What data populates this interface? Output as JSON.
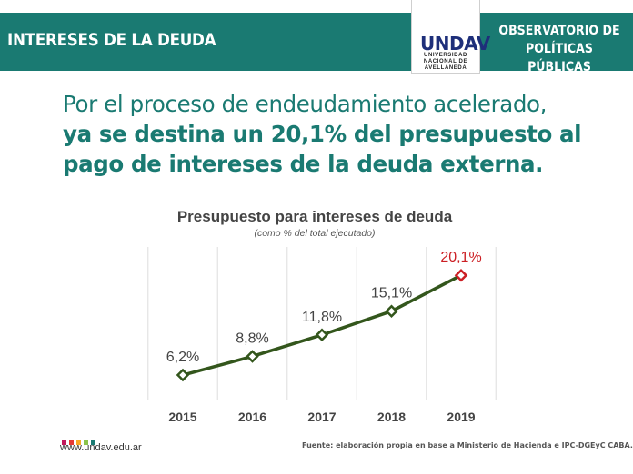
{
  "header": {
    "title": "INTERESES DE LA DEUDA",
    "logo": {
      "mark": "UNDAV",
      "lines": [
        "UNIVERSIDAD",
        "NACIONAL DE",
        "AVELLANEDA"
      ]
    },
    "observatorio_line1": "OBSERVATORIO DE",
    "observatorio_line2": "POLÍTICAS PÚBLICAS"
  },
  "headline": {
    "line1": "Por el proceso de endeudamiento acelerado,",
    "line2": "ya se destina un 20,1% del presupuesto al",
    "line3": "pago de intereses de la deuda externa."
  },
  "chart_data": {
    "type": "line",
    "title": "Presupuesto para intereses de deuda",
    "subtitle": "(como % del total ejecutado)",
    "categories": [
      "2015",
      "2016",
      "2017",
      "2018",
      "2019"
    ],
    "values": [
      6.2,
      8.8,
      11.8,
      15.1,
      20.1
    ],
    "data_labels": [
      "6,2%",
      "8,8%",
      "11,8%",
      "15,1%",
      "20,1%"
    ],
    "ylim": [
      0,
      22
    ],
    "grid": "vertical",
    "legend": "none",
    "colors": {
      "line": "#33561c",
      "highlight": "#cc1f24",
      "grid": "#e3e3e3",
      "label": "#444444"
    }
  },
  "footer": {
    "url": "www.undav.edu.ar",
    "source": "Fuente: elaboración propia en base a Ministerio de Hacienda e IPC-DGEyC CABA.",
    "square_colors": [
      "#c2185b",
      "#e53935",
      "#f9a825",
      "#8bc34a",
      "#1a7a72"
    ]
  },
  "colors": {
    "brand": "#1a7a72",
    "logo": "#1e2f7a"
  }
}
